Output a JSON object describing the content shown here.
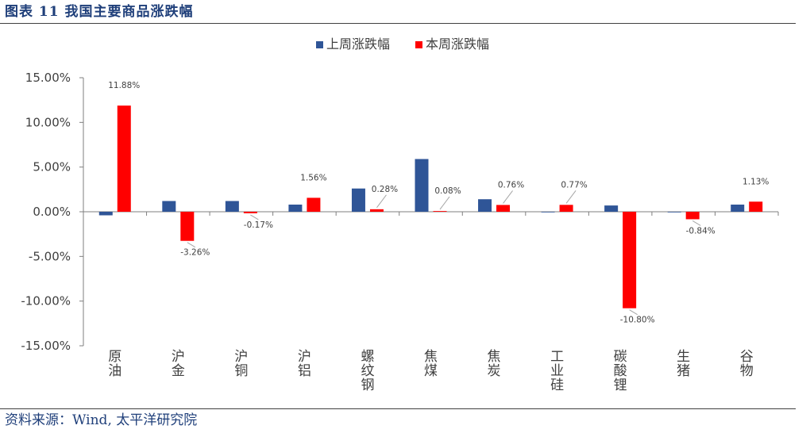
{
  "figure": {
    "title": "图表 11  我国主要商品涨跌幅",
    "source": "资料来源：Wind, 太平洋研究院"
  },
  "chart_data": {
    "type": "bar",
    "categories": [
      "原油",
      "沪金",
      "沪铜",
      "沪铝",
      "螺纹钢",
      "焦煤",
      "焦炭",
      "工业硅",
      "碳酸锂",
      "生猪",
      "谷物"
    ],
    "series": [
      {
        "name": "上周涨跌幅",
        "color": "#2f5597",
        "values": [
          -0.4,
          1.2,
          1.2,
          0.8,
          2.6,
          5.9,
          1.4,
          0.0,
          0.7,
          0.0,
          0.8
        ]
      },
      {
        "name": "本周涨跌幅",
        "color": "#ff0000",
        "values": [
          11.88,
          -3.26,
          -0.17,
          1.56,
          0.28,
          0.08,
          0.76,
          0.77,
          -10.8,
          -0.84,
          1.13
        ],
        "labels": [
          "11.88%",
          "-3.26%",
          "-0.17%",
          "1.56%",
          "0.28%",
          "0.08%",
          "0.76%",
          "0.77%",
          "-10.80%",
          "-0.84%",
          "1.13%"
        ]
      }
    ],
    "yticks": [
      "15.00%",
      "10.00%",
      "5.00%",
      "0.00%",
      "-5.00%",
      "-10.00%",
      "-15.00%"
    ],
    "ylim": [
      -15,
      15
    ],
    "legend_position": "top-center",
    "grid": false
  }
}
